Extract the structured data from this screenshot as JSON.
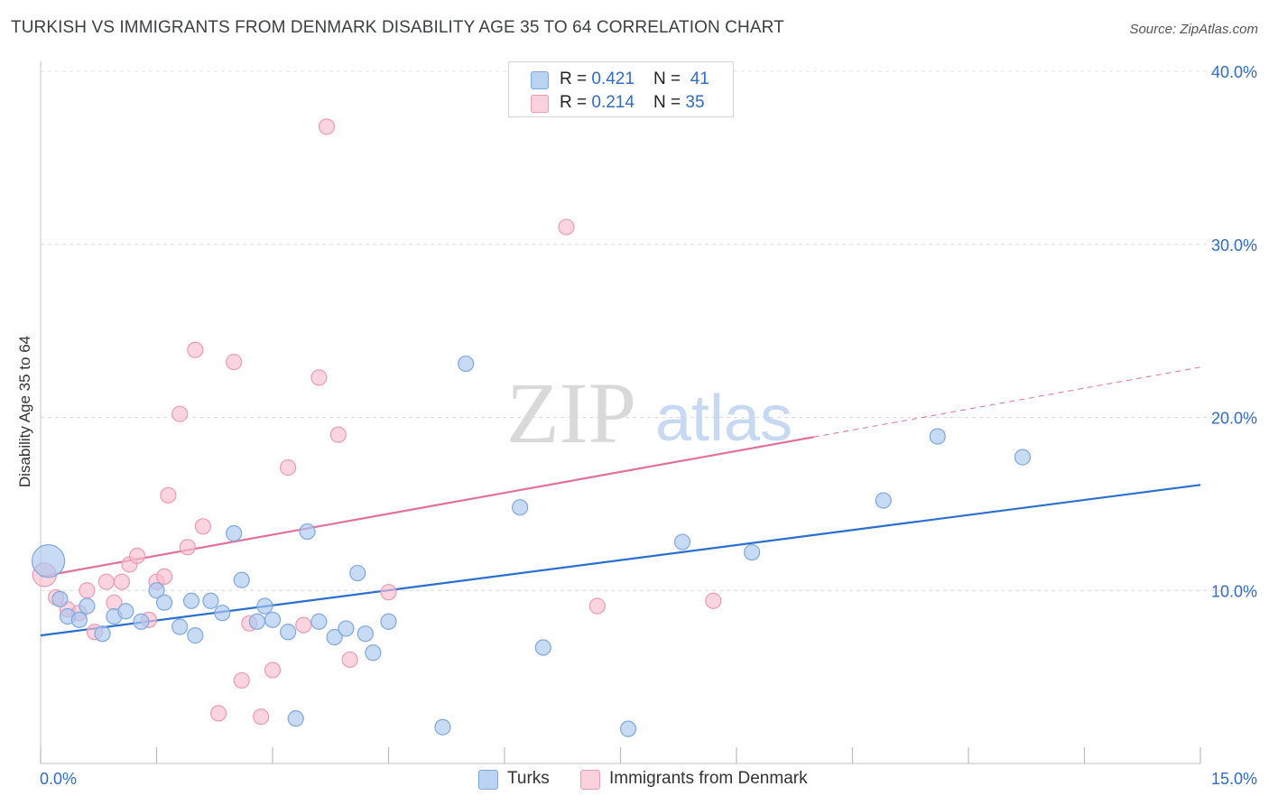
{
  "header": {
    "title": "TURKISH VS IMMIGRANTS FROM DENMARK DISABILITY AGE 35 TO 64 CORRELATION CHART",
    "source": "Source: ZipAtlas.com"
  },
  "watermark": {
    "zip": "ZIP",
    "atlas": "atlas"
  },
  "legend_top": {
    "rows": [
      {
        "r_label": "R = ",
        "r_value": "0.421",
        "n_label": "N = ",
        "n_value": "41"
      },
      {
        "r_label": "R = ",
        "r_value": "0.214",
        "n_label": "N = ",
        "n_value": "35"
      }
    ]
  },
  "colors": {
    "turks_fill": "#a9c8f0",
    "turks_stroke": "#7fa8de",
    "turks_line": "#2a6fd0",
    "denmark_fill": "#f8bfd0",
    "denmark_stroke": "#ee9ab4",
    "denmark_line": "#e3709a",
    "axis_label": "#2f6dc7",
    "grid": "#dcdcdc"
  },
  "chart_data": {
    "type": "scatter",
    "title": "TURKISH VS IMMIGRANTS FROM DENMARK DISABILITY AGE 35 TO 64 CORRELATION CHART",
    "xlabel": "",
    "ylabel": "Disability Age 35 to 64",
    "xlim": [
      0,
      15
    ],
    "ylim": [
      0,
      40
    ],
    "x_tick_labels": [
      "0.0%",
      "15.0%"
    ],
    "y_tick_labels": [
      "10.0%",
      "20.0%",
      "30.0%",
      "40.0%"
    ],
    "y_ticks": [
      10,
      20,
      30,
      40
    ],
    "grid": true,
    "legend_position": "bottom",
    "series": [
      {
        "name": "Turks",
        "R": 0.421,
        "N": 41,
        "trend": {
          "x": [
            0,
            15
          ],
          "y": [
            7.4,
            16.1
          ],
          "dashed_from": null
        },
        "points": [
          [
            0.1,
            11.7
          ],
          [
            0.25,
            9.5
          ],
          [
            0.35,
            8.5
          ],
          [
            0.5,
            8.3
          ],
          [
            0.6,
            9.1
          ],
          [
            0.8,
            7.5
          ],
          [
            0.95,
            8.5
          ],
          [
            1.1,
            8.8
          ],
          [
            1.3,
            8.2
          ],
          [
            1.5,
            10.0
          ],
          [
            1.6,
            9.3
          ],
          [
            1.8,
            7.9
          ],
          [
            1.95,
            9.4
          ],
          [
            2.0,
            7.4
          ],
          [
            2.2,
            9.4
          ],
          [
            2.35,
            8.7
          ],
          [
            2.5,
            13.3
          ],
          [
            2.6,
            10.6
          ],
          [
            2.8,
            8.2
          ],
          [
            2.9,
            9.1
          ],
          [
            3.0,
            8.3
          ],
          [
            3.2,
            7.6
          ],
          [
            3.3,
            2.6
          ],
          [
            3.45,
            13.4
          ],
          [
            3.6,
            8.2
          ],
          [
            3.8,
            7.3
          ],
          [
            3.95,
            7.8
          ],
          [
            4.1,
            11.0
          ],
          [
            4.2,
            7.5
          ],
          [
            4.3,
            6.4
          ],
          [
            4.5,
            8.2
          ],
          [
            5.2,
            2.1
          ],
          [
            5.5,
            23.1
          ],
          [
            6.2,
            14.8
          ],
          [
            6.5,
            6.7
          ],
          [
            7.6,
            2.0
          ],
          [
            8.3,
            12.8
          ],
          [
            9.2,
            12.2
          ],
          [
            10.9,
            15.2
          ],
          [
            11.6,
            18.9
          ],
          [
            12.7,
            17.7
          ]
        ]
      },
      {
        "name": "Immigrants from Denmark",
        "R": 0.214,
        "N": 35,
        "trend": {
          "x": [
            0,
            15
          ],
          "y": [
            10.8,
            22.9
          ],
          "dashed_from": 10.0
        },
        "points": [
          [
            0.05,
            10.9
          ],
          [
            0.2,
            9.6
          ],
          [
            0.35,
            8.9
          ],
          [
            0.5,
            8.7
          ],
          [
            0.6,
            10.0
          ],
          [
            0.7,
            7.6
          ],
          [
            0.85,
            10.5
          ],
          [
            0.95,
            9.3
          ],
          [
            1.05,
            10.5
          ],
          [
            1.15,
            11.5
          ],
          [
            1.25,
            12.0
          ],
          [
            1.4,
            8.3
          ],
          [
            1.5,
            10.5
          ],
          [
            1.65,
            15.5
          ],
          [
            1.8,
            20.2
          ],
          [
            1.9,
            12.5
          ],
          [
            2.0,
            23.9
          ],
          [
            2.1,
            13.7
          ],
          [
            2.3,
            2.9
          ],
          [
            2.5,
            23.2
          ],
          [
            2.6,
            4.8
          ],
          [
            2.7,
            8.1
          ],
          [
            2.85,
            2.7
          ],
          [
            3.0,
            5.4
          ],
          [
            3.2,
            17.1
          ],
          [
            3.4,
            8.0
          ],
          [
            3.6,
            22.3
          ],
          [
            3.7,
            36.8
          ],
          [
            3.85,
            19.0
          ],
          [
            4.0,
            6.0
          ],
          [
            4.5,
            9.9
          ],
          [
            6.8,
            31.0
          ],
          [
            7.2,
            9.1
          ],
          [
            8.7,
            9.4
          ],
          [
            1.6,
            10.8
          ]
        ]
      }
    ]
  }
}
